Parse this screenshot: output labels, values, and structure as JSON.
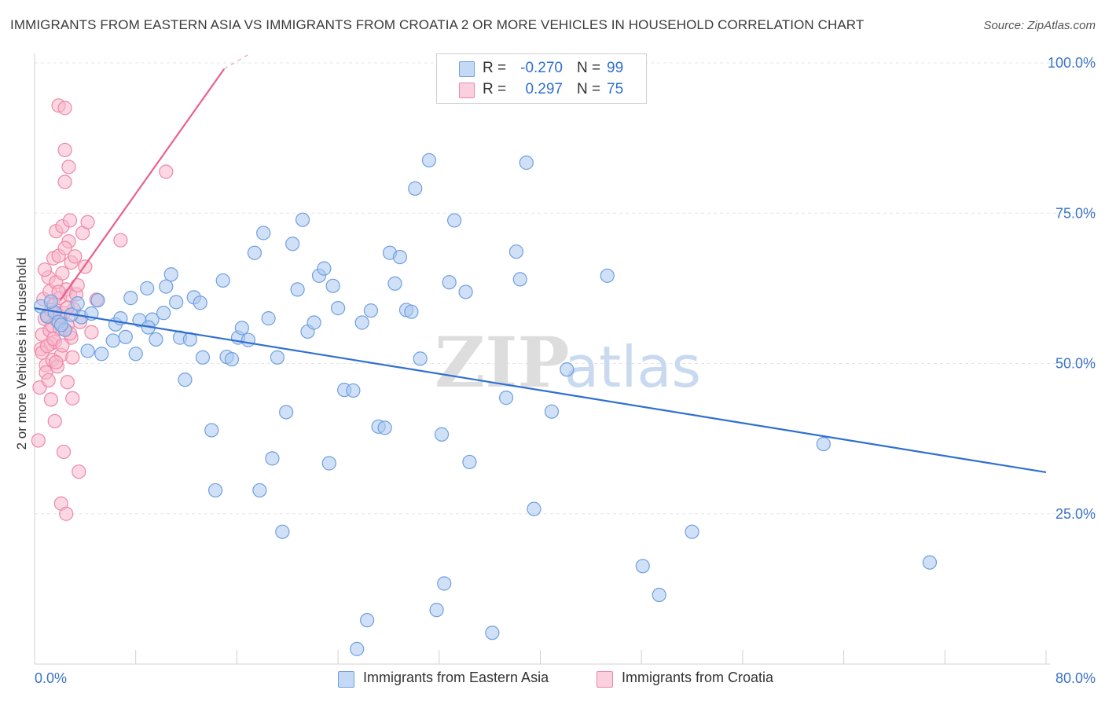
{
  "title": "IMMIGRANTS FROM EASTERN ASIA VS IMMIGRANTS FROM CROATIA 2 OR MORE VEHICLES IN HOUSEHOLD CORRELATION CHART",
  "source": "Source: ZipAtlas.com",
  "watermark": "ZIPatlas",
  "legend": {
    "row1": {
      "r_label": "R =",
      "r_value": "-0.270",
      "n_label": "N =",
      "n_value": "99"
    },
    "row2": {
      "r_label": "R =",
      "r_value": "0.297",
      "n_label": "N =",
      "n_value": "75"
    }
  },
  "bottom_legend": {
    "series1": "Immigrants from Eastern Asia",
    "series2": "Immigrants from Croatia"
  },
  "colors": {
    "blue_fill": "#aac8f0",
    "blue_stroke": "#6f9fe0",
    "blue_line": "#2f6fd1",
    "pink_fill": "#f7b8cc",
    "pink_stroke": "#ee88a8",
    "pink_line": "#e8608c",
    "axis_text": "#3a72c9",
    "grid": "#e5e5e5"
  },
  "chart_data": {
    "type": "scatter",
    "xlabel": "",
    "ylabel": "2 or more Vehicles in Household",
    "xlim": [
      0,
      80
    ],
    "ylim": [
      0,
      100
    ],
    "x_tick_labels": [
      "0.0%",
      "80.0%"
    ],
    "y_tick_labels": [
      "25.0%",
      "50.0%",
      "75.0%",
      "100.0%"
    ],
    "y_ticks": [
      25,
      50,
      75,
      100
    ],
    "grid": true,
    "legend_position": "top-center",
    "series": [
      {
        "name": "Immigrants from Eastern Asia",
        "color": "#6f9fe0",
        "trend": {
          "x": [
            0,
            80
          ],
          "y": [
            59.2,
            31.9
          ]
        },
        "points": [
          [
            0.5,
            59.5
          ],
          [
            1.0,
            57.8
          ],
          [
            1.6,
            58.5
          ],
          [
            1.3,
            60.3
          ],
          [
            1.9,
            56.9
          ],
          [
            2.4,
            55.6
          ],
          [
            3.7,
            57.7
          ],
          [
            2.1,
            56.4
          ],
          [
            4.5,
            58.3
          ],
          [
            4.2,
            52.1
          ],
          [
            5.3,
            51.6
          ],
          [
            6.2,
            53.8
          ],
          [
            6.4,
            56.5
          ],
          [
            6.8,
            57.5
          ],
          [
            7.2,
            54.4
          ],
          [
            7.6,
            60.9
          ],
          [
            8.0,
            51.6
          ],
          [
            8.3,
            57.2
          ],
          [
            8.9,
            62.5
          ],
          [
            9.3,
            57.3
          ],
          [
            9.6,
            54.0
          ],
          [
            10.2,
            58.4
          ],
          [
            10.4,
            62.8
          ],
          [
            10.8,
            64.8
          ],
          [
            11.2,
            60.2
          ],
          [
            11.5,
            54.3
          ],
          [
            11.9,
            47.3
          ],
          [
            12.3,
            54.0
          ],
          [
            12.6,
            61.0
          ],
          [
            13.1,
            60.1
          ],
          [
            13.3,
            51.0
          ],
          [
            14.0,
            38.9
          ],
          [
            14.3,
            28.9
          ],
          [
            14.9,
            63.8
          ],
          [
            15.2,
            51.1
          ],
          [
            15.6,
            50.7
          ],
          [
            16.1,
            54.3
          ],
          [
            16.4,
            55.9
          ],
          [
            16.9,
            53.9
          ],
          [
            17.4,
            68.4
          ],
          [
            17.8,
            28.9
          ],
          [
            18.1,
            71.7
          ],
          [
            18.5,
            57.5
          ],
          [
            18.8,
            34.2
          ],
          [
            19.2,
            51.0
          ],
          [
            19.6,
            22.0
          ],
          [
            19.9,
            41.9
          ],
          [
            20.4,
            69.9
          ],
          [
            20.8,
            62.3
          ],
          [
            21.2,
            73.9
          ],
          [
            21.6,
            55.3
          ],
          [
            22.1,
            56.8
          ],
          [
            22.5,
            64.6
          ],
          [
            22.9,
            65.8
          ],
          [
            23.3,
            33.4
          ],
          [
            23.6,
            62.9
          ],
          [
            24.0,
            59.2
          ],
          [
            24.5,
            45.6
          ],
          [
            25.2,
            45.5
          ],
          [
            25.5,
            2.5
          ],
          [
            25.9,
            56.8
          ],
          [
            26.3,
            7.3
          ],
          [
            26.6,
            58.8
          ],
          [
            27.2,
            39.5
          ],
          [
            27.7,
            39.3
          ],
          [
            28.1,
            68.4
          ],
          [
            28.5,
            63.3
          ],
          [
            28.9,
            67.7
          ],
          [
            29.4,
            58.9
          ],
          [
            29.8,
            58.6
          ],
          [
            30.1,
            79.1
          ],
          [
            30.5,
            50.8
          ],
          [
            31.2,
            83.8
          ],
          [
            31.8,
            9.0
          ],
          [
            32.2,
            38.2
          ],
          [
            32.4,
            13.4
          ],
          [
            32.8,
            63.5
          ],
          [
            33.2,
            73.8
          ],
          [
            34.1,
            61.9
          ],
          [
            34.4,
            33.6
          ],
          [
            36.2,
            5.2
          ],
          [
            37.3,
            44.3
          ],
          [
            38.1,
            68.6
          ],
          [
            38.4,
            64.0
          ],
          [
            38.9,
            83.4
          ],
          [
            39.5,
            25.8
          ],
          [
            40.9,
            42.0
          ],
          [
            42.1,
            49.0
          ],
          [
            45.3,
            64.6
          ],
          [
            48.1,
            16.3
          ],
          [
            49.4,
            11.5
          ],
          [
            52.0,
            22.0
          ],
          [
            62.4,
            36.6
          ],
          [
            70.8,
            16.9
          ],
          [
            43.5,
            100.0
          ],
          [
            2.9,
            58.1
          ],
          [
            3.4,
            60.0
          ],
          [
            5.0,
            60.5
          ],
          [
            9.0,
            56.0
          ]
        ]
      },
      {
        "name": "Immigrants from Croatia",
        "color": "#ee88a8",
        "trend": {
          "x": [
            0,
            15.3
          ],
          "y": [
            54.5,
            99.9
          ]
        },
        "points": [
          [
            0.3,
            37.2
          ],
          [
            0.5,
            52.4
          ],
          [
            0.6,
            54.8
          ],
          [
            0.7,
            60.7
          ],
          [
            0.8,
            57.4
          ],
          [
            0.9,
            49.7
          ],
          [
            0.9,
            48.5
          ],
          [
            1.0,
            58.0
          ],
          [
            1.1,
            64.3
          ],
          [
            1.2,
            62.0
          ],
          [
            1.2,
            55.5
          ],
          [
            1.3,
            53.3
          ],
          [
            1.3,
            44.0
          ],
          [
            1.4,
            56.3
          ],
          [
            1.4,
            50.6
          ],
          [
            1.5,
            67.5
          ],
          [
            1.5,
            59.7
          ],
          [
            1.6,
            53.6
          ],
          [
            1.6,
            40.4
          ],
          [
            1.7,
            72.0
          ],
          [
            1.7,
            63.5
          ],
          [
            1.8,
            57.1
          ],
          [
            1.8,
            49.5
          ],
          [
            1.9,
            92.9
          ],
          [
            1.9,
            67.9
          ],
          [
            2.0,
            60.9
          ],
          [
            2.0,
            55.8
          ],
          [
            2.1,
            51.4
          ],
          [
            2.1,
            26.7
          ],
          [
            2.2,
            72.8
          ],
          [
            2.2,
            65.0
          ],
          [
            2.3,
            58.4
          ],
          [
            2.3,
            35.3
          ],
          [
            2.4,
            92.5
          ],
          [
            2.4,
            85.5
          ],
          [
            2.4,
            80.2
          ],
          [
            2.5,
            25.0
          ],
          [
            2.5,
            62.3
          ],
          [
            2.6,
            56.4
          ],
          [
            2.6,
            46.9
          ],
          [
            2.7,
            82.7
          ],
          [
            2.7,
            70.3
          ],
          [
            2.8,
            73.8
          ],
          [
            2.8,
            61.3
          ],
          [
            2.9,
            66.8
          ],
          [
            2.9,
            54.3
          ],
          [
            3.0,
            44.2
          ],
          [
            3.1,
            59.0
          ],
          [
            3.2,
            67.8
          ],
          [
            3.3,
            61.5
          ],
          [
            3.5,
            32.0
          ],
          [
            3.8,
            71.7
          ],
          [
            4.0,
            66.1
          ],
          [
            4.2,
            73.5
          ],
          [
            4.5,
            55.2
          ],
          [
            4.9,
            60.6
          ],
          [
            6.8,
            70.5
          ],
          [
            10.4,
            81.9
          ],
          [
            0.4,
            46.0
          ],
          [
            0.6,
            51.8
          ],
          [
            0.8,
            65.6
          ],
          [
            1.0,
            52.9
          ],
          [
            1.1,
            47.2
          ],
          [
            1.3,
            58.9
          ],
          [
            1.5,
            54.1
          ],
          [
            1.7,
            50.2
          ],
          [
            1.9,
            61.9
          ],
          [
            2.0,
            57.9
          ],
          [
            2.2,
            53.0
          ],
          [
            2.4,
            69.2
          ],
          [
            2.6,
            59.3
          ],
          [
            2.8,
            55.0
          ],
          [
            3.0,
            51.0
          ],
          [
            3.4,
            63.0
          ],
          [
            3.6,
            56.9
          ]
        ]
      }
    ]
  }
}
